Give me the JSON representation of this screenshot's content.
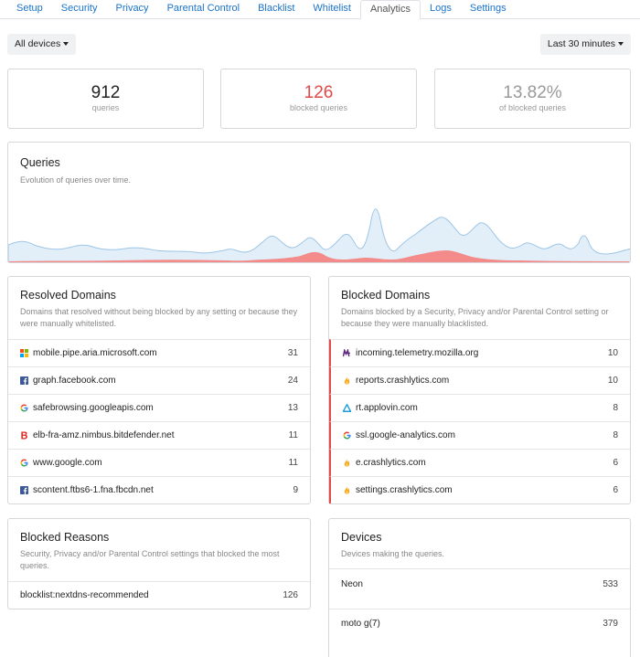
{
  "tabs": [
    {
      "label": "Setup"
    },
    {
      "label": "Security"
    },
    {
      "label": "Privacy"
    },
    {
      "label": "Parental Control"
    },
    {
      "label": "Blacklist"
    },
    {
      "label": "Whitelist"
    },
    {
      "label": "Analytics",
      "active": true
    },
    {
      "label": "Logs"
    },
    {
      "label": "Settings"
    }
  ],
  "toolbar": {
    "device_filter": "All devices",
    "time_range": "Last 30 minutes"
  },
  "stats": {
    "queries": {
      "value": "912",
      "label": "queries"
    },
    "blocked": {
      "value": "126",
      "label": "blocked queries",
      "color": "#e04848"
    },
    "percent": {
      "value": "13.82%",
      "label": "of blocked queries"
    }
  },
  "queries_panel": {
    "title": "Queries",
    "description": "Evolution of queries over time.",
    "colors": {
      "total_fill": "#d6e7f5",
      "total_line": "#9cc4e4",
      "blocked_fill": "#f08c8c"
    }
  },
  "resolved": {
    "title": "Resolved Domains",
    "description": "Domains that resolved without being blocked by any setting or because they were manually whitelisted.",
    "items": [
      {
        "domain": "mobile.pipe.aria.microsoft.com",
        "count": "31",
        "icon": "microsoft-icon"
      },
      {
        "domain": "graph.facebook.com",
        "count": "24",
        "icon": "facebook-icon"
      },
      {
        "domain": "safebrowsing.googleapis.com",
        "count": "13",
        "icon": "google-icon"
      },
      {
        "domain": "elb-fra-amz.nimbus.bitdefender.net",
        "count": "11",
        "icon": "bitdefender-icon"
      },
      {
        "domain": "www.google.com",
        "count": "11",
        "icon": "google-icon"
      },
      {
        "domain": "scontent.ftbs6-1.fna.fbcdn.net",
        "count": "9",
        "icon": "facebook-icon"
      }
    ]
  },
  "blocked": {
    "title": "Blocked Domains",
    "description": "Domains blocked by a Security, Privacy and/or Parental Control setting or because they were manually blacklisted.",
    "items": [
      {
        "domain": "incoming.telemetry.mozilla.org",
        "count": "10",
        "icon": "mozilla-icon"
      },
      {
        "domain": "reports.crashlytics.com",
        "count": "10",
        "icon": "crashlytics-icon"
      },
      {
        "domain": "rt.applovin.com",
        "count": "8",
        "icon": "applovin-icon"
      },
      {
        "domain": "ssl.google-analytics.com",
        "count": "8",
        "icon": "google-icon"
      },
      {
        "domain": "e.crashlytics.com",
        "count": "6",
        "icon": "crashlytics-icon"
      },
      {
        "domain": "settings.crashlytics.com",
        "count": "6",
        "icon": "crashlytics-icon"
      }
    ]
  },
  "reasons": {
    "title": "Blocked Reasons",
    "description": "Security, Privacy and/or Parental Control settings that blocked the most queries.",
    "items": [
      {
        "name": "blocklist:nextdns-recommended",
        "count": "126"
      }
    ]
  },
  "devices": {
    "title": "Devices",
    "description": "Devices making the queries.",
    "items": [
      {
        "name": "Neon",
        "count": "533"
      },
      {
        "name": "moto g(7)",
        "count": "379"
      }
    ]
  }
}
